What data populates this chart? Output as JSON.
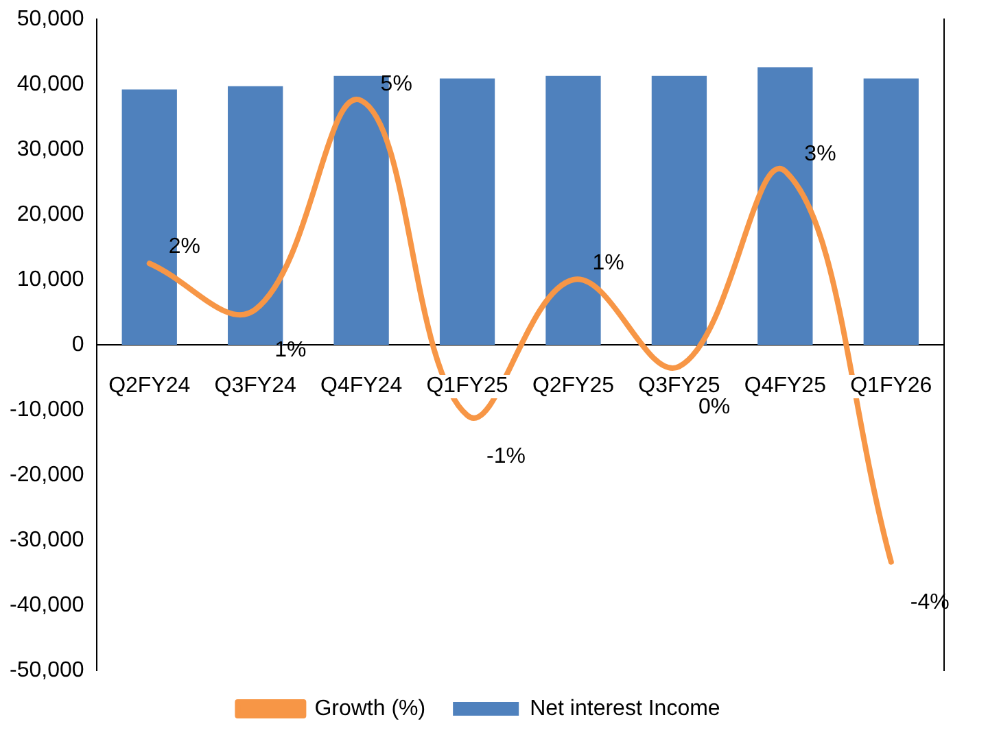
{
  "chart_data": {
    "type": "bar",
    "categories": [
      "Q2FY24",
      "Q3FY24",
      "Q4FY24",
      "Q1FY25",
      "Q2FY25",
      "Q3FY25",
      "Q4FY25",
      "Q1FY26"
    ],
    "series": [
      {
        "name": "Net interest Income",
        "color": "#4f81bd",
        "values": [
          39200,
          39700,
          41300,
          40900,
          41300,
          41300,
          42600,
          40900
        ]
      },
      {
        "name": "Growth (%)",
        "type": "line",
        "axis": "y2",
        "color": "#f79646",
        "values": [
          1.5,
          0.65,
          4.5,
          -1.3,
          1.2,
          -0.4,
          3.2,
          -4.0
        ],
        "value_labels": [
          "2%",
          "1%",
          "5%",
          "-1%",
          "1%",
          "0%",
          "3%",
          "-4%"
        ]
      }
    ],
    "ylim": [
      -50000,
      50000
    ],
    "yticks": [
      {
        "value": -50000,
        "label": "-50,000"
      },
      {
        "value": -40000,
        "label": "-40,000"
      },
      {
        "value": -30000,
        "label": "-30,000"
      },
      {
        "value": -20000,
        "label": "-20,000"
      },
      {
        "value": -10000,
        "label": "-10,000"
      },
      0,
      {
        "value": 10000,
        "label": "10,000"
      },
      {
        "value": 20000,
        "label": "20,000"
      },
      {
        "value": 30000,
        "label": "30,000"
      },
      {
        "value": 40000,
        "label": "40,000"
      },
      {
        "value": 50000,
        "label": "50,000"
      }
    ],
    "y2lim": [
      -6,
      6
    ],
    "grid": false,
    "legend": "bottom",
    "marker": "none",
    "line_style": "solid"
  }
}
